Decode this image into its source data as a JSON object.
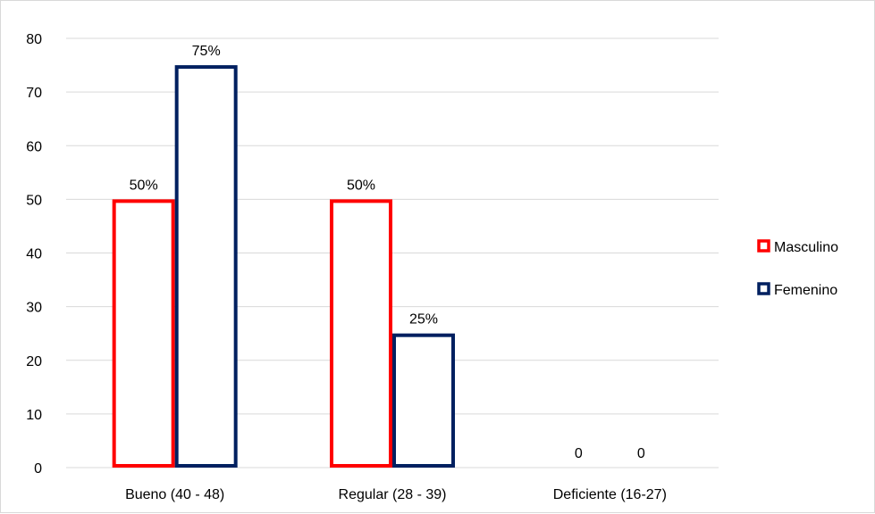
{
  "chart_data": {
    "type": "bar",
    "categories": [
      "Bueno (40 - 48)",
      "Regular (28 - 39)",
      "Deficiente (16-27)"
    ],
    "series": [
      {
        "name": "Masculino",
        "values": [
          50,
          50,
          0
        ],
        "labels": [
          "50%",
          "50%",
          "0"
        ],
        "color": "#ff0000"
      },
      {
        "name": "Femenino",
        "values": [
          75,
          25,
          0
        ],
        "labels": [
          "75%",
          "25%",
          "0"
        ],
        "color": "#002060"
      }
    ],
    "ylim": [
      0,
      80
    ],
    "yticks": [
      0,
      10,
      20,
      30,
      40,
      50,
      60,
      70,
      80
    ],
    "grid": true,
    "legend": "right",
    "bar_style": "outline"
  }
}
